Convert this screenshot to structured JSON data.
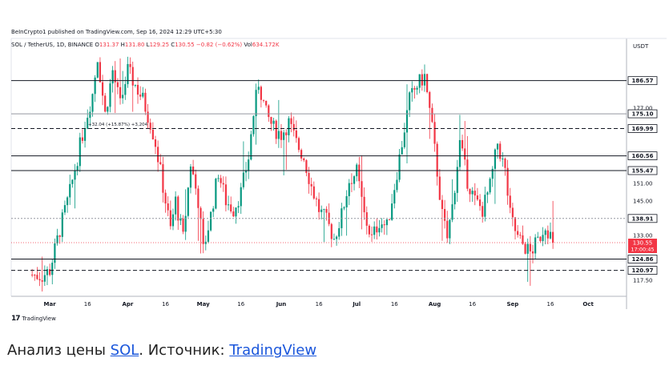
{
  "publisher": "BeInCrypto1 published on TradingView.com, Sep 16, 2024 12:29 UTC+5:30",
  "legend": {
    "symbol": "SOL / TetherUS, 1D, BINANCE",
    "o_label": "O",
    "o_value": "131.37",
    "h_label": "H",
    "h_value": "131.80",
    "l_label": "L",
    "l_value": "129.25",
    "c_label": "C",
    "c_value": "130.55",
    "change": "−0.82 (−0.62%)",
    "vol_label": "Vol",
    "vol_value": "634.172K"
  },
  "logo_text": "TradingView",
  "caption": {
    "prefix": "Анализ цены ",
    "link1": "SOL",
    "middle": ". Источник: ",
    "link2": "TradingView"
  },
  "colors": {
    "up": "#089981",
    "down": "#f23645",
    "line": "#131722"
  },
  "chart_data": {
    "type": "candlestick",
    "currency_label": "USDT",
    "y_range": [
      112,
      197
    ],
    "y_ticks": [
      117.5,
      133.0,
      145.0,
      151.0,
      177.0
    ],
    "x_ticks": [
      {
        "day": 8,
        "label": "Mar"
      },
      {
        "day": 23,
        "label": "16"
      },
      {
        "day": 39,
        "label": "Apr"
      },
      {
        "day": 54,
        "label": "16"
      },
      {
        "day": 69,
        "label": "May"
      },
      {
        "day": 84,
        "label": "16"
      },
      {
        "day": 100,
        "label": "Jun"
      },
      {
        "day": 115,
        "label": "16"
      },
      {
        "day": 130,
        "label": "Jul"
      },
      {
        "day": 145,
        "label": "16"
      },
      {
        "day": 161,
        "label": "Aug"
      },
      {
        "day": 176,
        "label": "16"
      },
      {
        "day": 192,
        "label": "Sep"
      },
      {
        "day": 207,
        "label": "16"
      },
      {
        "day": 222,
        "label": "Oct"
      }
    ],
    "levels": [
      {
        "value": 186.57,
        "label": "186.57",
        "style": "solid"
      },
      {
        "value": 175.1,
        "label": "175.10",
        "style": "solid-light"
      },
      {
        "value": 169.99,
        "label": "169.99",
        "style": "dashed"
      },
      {
        "value": 160.56,
        "label": "160.56",
        "style": "solid"
      },
      {
        "value": 155.47,
        "label": "155.47",
        "style": "solid"
      },
      {
        "value": 138.91,
        "label": "138.91",
        "style": "dotted"
      },
      {
        "value": 124.86,
        "label": "124.86",
        "style": "solid"
      },
      {
        "value": 120.97,
        "label": "120.97",
        "style": "dashed"
      }
    ],
    "price_badge": {
      "value": 130.55,
      "label": "130.55",
      "countdown": "17:00:45"
    },
    "measure_label": "+32.04 (+15.87%) +3,204",
    "waypoints": [
      [
        1,
        119.5
      ],
      [
        5,
        119
      ],
      [
        8,
        121
      ],
      [
        12,
        135
      ],
      [
        16,
        148
      ],
      [
        19,
        160
      ],
      [
        22,
        172
      ],
      [
        25,
        182
      ],
      [
        27,
        195
      ],
      [
        30,
        175
      ],
      [
        33,
        190
      ],
      [
        36,
        178
      ],
      [
        39,
        190
      ],
      [
        42,
        185
      ],
      [
        45,
        180
      ],
      [
        48,
        172
      ],
      [
        50,
        165
      ],
      [
        53,
        150
      ],
      [
        56,
        135
      ],
      [
        58,
        145
      ],
      [
        61,
        132
      ],
      [
        64,
        158
      ],
      [
        67,
        145
      ],
      [
        69,
        128
      ],
      [
        72,
        140
      ],
      [
        75,
        155
      ],
      [
        78,
        145
      ],
      [
        81,
        142
      ],
      [
        84,
        148
      ],
      [
        87,
        160
      ],
      [
        89,
        175
      ],
      [
        91,
        186
      ],
      [
        94,
        175
      ],
      [
        97,
        170
      ],
      [
        100,
        168
      ],
      [
        103,
        172
      ],
      [
        106,
        165
      ],
      [
        109,
        160
      ],
      [
        112,
        150
      ],
      [
        115,
        142
      ],
      [
        118,
        138
      ],
      [
        121,
        132
      ],
      [
        124,
        140
      ],
      [
        127,
        152
      ],
      [
        130,
        155
      ],
      [
        133,
        140
      ],
      [
        136,
        132
      ],
      [
        139,
        138
      ],
      [
        142,
        136
      ],
      [
        145,
        150
      ],
      [
        148,
        165
      ],
      [
        151,
        180
      ],
      [
        154,
        185
      ],
      [
        157,
        188
      ],
      [
        160,
        170
      ],
      [
        162,
        155
      ],
      [
        164,
        140
      ],
      [
        166,
        132
      ],
      [
        168,
        143
      ],
      [
        171,
        165
      ],
      [
        174,
        152
      ],
      [
        177,
        145
      ],
      [
        180,
        142
      ],
      [
        183,
        150
      ],
      [
        186,
        165
      ],
      [
        189,
        155
      ],
      [
        191,
        140
      ],
      [
        194,
        132
      ],
      [
        196,
        130
      ],
      [
        199,
        127
      ],
      [
        202,
        131
      ],
      [
        205,
        137
      ],
      [
        207,
        133
      ],
      [
        208,
        130.55
      ]
    ]
  }
}
